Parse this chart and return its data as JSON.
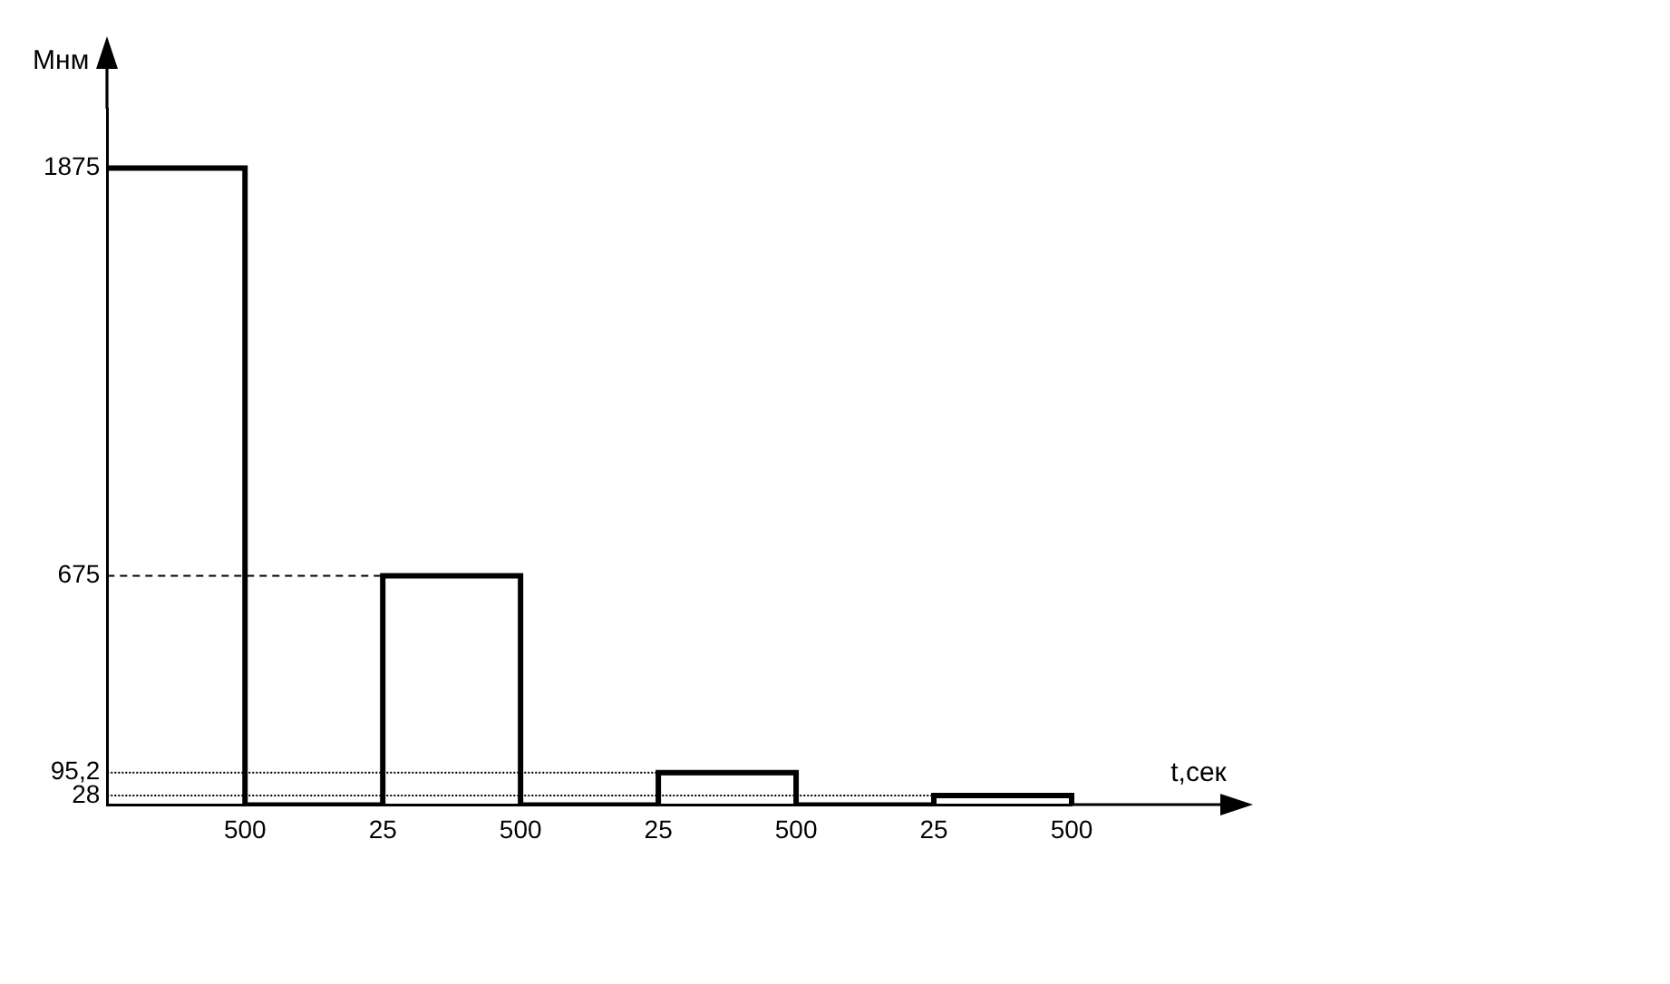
{
  "chart_data": {
    "type": "step",
    "xlabel": "t,сек",
    "ylabel": "Мнм",
    "categories": [
      null,
      "500",
      "25",
      "500",
      "25",
      "500",
      "25",
      "500"
    ],
    "values": [
      1875,
      0,
      675,
      0,
      95.2,
      0,
      28,
      0
    ],
    "color": "#000000",
    "ylim": [
      0,
      2050
    ],
    "yticks": [
      {
        "value": 28,
        "label": "28"
      },
      {
        "value": 95.2,
        "label": "95,2"
      },
      {
        "value": 675,
        "label": "675"
      },
      {
        "value": 1875,
        "label": "1875"
      }
    ],
    "ref_lines": [
      {
        "axis": "y",
        "value": 675,
        "line_style": "dashed"
      },
      {
        "axis": "y",
        "value": 95.2,
        "line_style": "dotted"
      },
      {
        "axis": "y",
        "value": 28,
        "line_style": "dotted"
      }
    ]
  }
}
